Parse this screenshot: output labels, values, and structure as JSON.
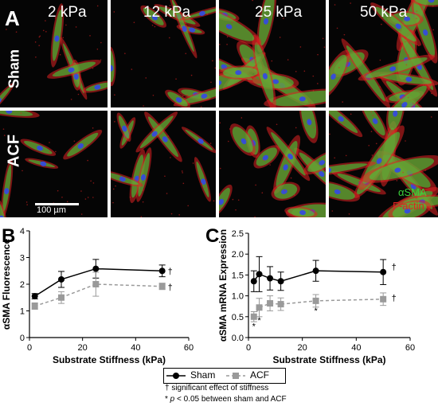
{
  "panel_a": {
    "letter": "A",
    "stiffness_labels": [
      "2 kPa",
      "12 kPa",
      "25 kPa",
      "50 kPa"
    ],
    "row_labels": [
      "Sham",
      "ACF"
    ],
    "scale_bar": "100 µm",
    "stain_labels": {
      "green": "αSMA",
      "red": "F-actin"
    },
    "colors": {
      "green": "#3ad23a",
      "red": "#e02222",
      "blue": "#3348e6"
    }
  },
  "panel_b": {
    "letter": "B"
  },
  "panel_c": {
    "letter": "C"
  },
  "legend": {
    "sham": "Sham",
    "acf": "ACF"
  },
  "footnotes": {
    "dagger": "† significant effect of stiffness",
    "star_prefix": "* ",
    "star_p": "p",
    "star_rest": " < 0.05 between sham and ACF"
  },
  "chart_data": [
    {
      "type": "line",
      "xlabel": "Substrate Stiffness (kPa)",
      "ylabel": "αSMA Fluorescence",
      "xlim": [
        0,
        60
      ],
      "ylim": [
        0,
        4
      ],
      "xticks": [
        0,
        20,
        40,
        60
      ],
      "yticks": [
        0,
        1,
        2,
        3,
        4
      ],
      "series": [
        {
          "name": "Sham",
          "style": "solid",
          "marker": "circle",
          "color": "#000000",
          "x": [
            2,
            12,
            25,
            50
          ],
          "y": [
            1.55,
            2.18,
            2.58,
            2.5
          ],
          "err": [
            0.1,
            0.3,
            0.35,
            0.22
          ]
        },
        {
          "name": "ACF",
          "style": "dashed",
          "marker": "square",
          "color": "#9a9a9a",
          "x": [
            2,
            12,
            25,
            50
          ],
          "y": [
            1.18,
            1.5,
            2.0,
            1.92
          ],
          "err": [
            0.12,
            0.22,
            0.45,
            0.12
          ]
        }
      ],
      "annotations": [
        {
          "text": "†",
          "x": 53,
          "y": 2.5
        },
        {
          "text": "†",
          "x": 53,
          "y": 1.9
        }
      ]
    },
    {
      "type": "line",
      "xlabel": "Substrate Stiffness (kPa)",
      "ylabel": "αSMA mRNA Expression",
      "xlim": [
        0,
        60
      ],
      "ylim": [
        0,
        2.5
      ],
      "xticks": [
        0,
        20,
        40,
        60
      ],
      "yticks": [
        0.0,
        0.5,
        1.0,
        1.5,
        2.0,
        2.5
      ],
      "series": [
        {
          "name": "Sham",
          "style": "solid",
          "marker": "circle",
          "color": "#000000",
          "x": [
            2,
            4,
            8,
            12,
            25,
            50
          ],
          "y": [
            1.35,
            1.52,
            1.42,
            1.35,
            1.6,
            1.57
          ],
          "err": [
            0.25,
            0.42,
            0.28,
            0.22,
            0.25,
            0.3
          ]
        },
        {
          "name": "ACF",
          "style": "dashed",
          "marker": "square",
          "color": "#9a9a9a",
          "x": [
            2,
            4,
            8,
            12,
            25,
            50
          ],
          "y": [
            0.5,
            0.72,
            0.82,
            0.8,
            0.88,
            0.92
          ],
          "err": [
            0.12,
            0.22,
            0.18,
            0.15,
            0.15,
            0.15
          ]
        }
      ],
      "annotations": [
        {
          "text": "*",
          "x": 2,
          "y": 0.28
        },
        {
          "text": "*",
          "x": 4,
          "y": 0.42
        },
        {
          "text": "*",
          "x": 25,
          "y": 0.65
        },
        {
          "text": "†",
          "x": 54,
          "y": 1.7
        },
        {
          "text": "†",
          "x": 54,
          "y": 0.95
        }
      ]
    }
  ]
}
